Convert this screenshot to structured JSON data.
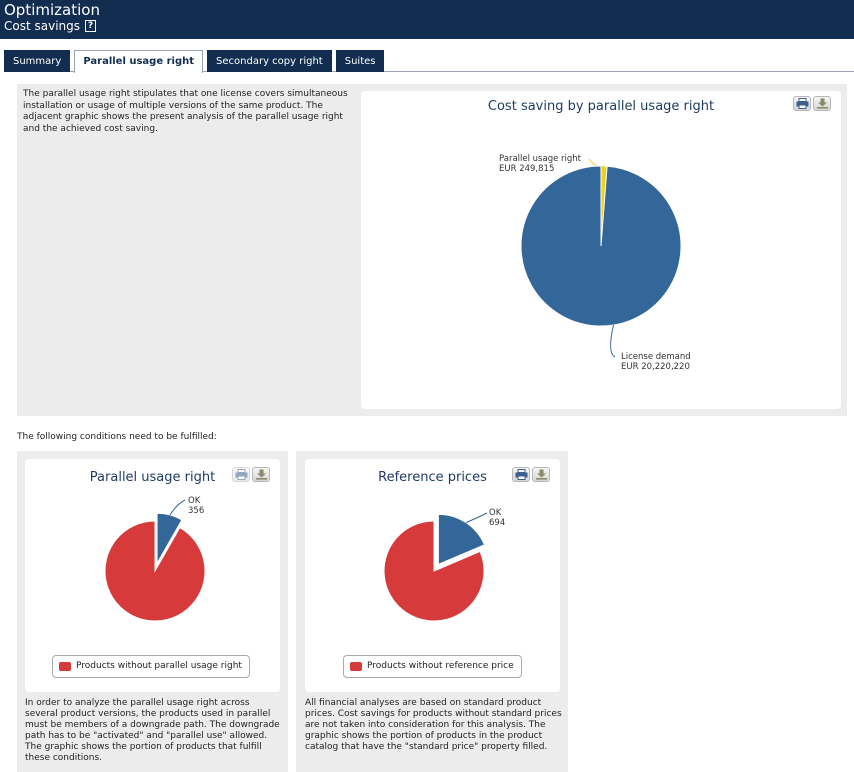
{
  "header": {
    "title": "Optimization",
    "subtitle": "Cost savings",
    "help_glyph": "?"
  },
  "tabs": [
    {
      "label": "Summary",
      "active": false
    },
    {
      "label": "Parallel usage right",
      "active": true
    },
    {
      "label": "Secondary copy right",
      "active": false
    },
    {
      "label": "Suites",
      "active": false
    }
  ],
  "intro": {
    "text": "The parallel usage right stipulates that one license covers simultaneous installation or usage of multiple versions of the same product. The adjacent graphic shows the present analysis of the parallel usage right and the achieved cost saving."
  },
  "conditions_label": "The following conditions need to be fulfilled:",
  "controls": {
    "print_icon": "print-icon",
    "download_icon": "download-icon"
  },
  "colors": {
    "header": "#132d50",
    "blue": "#336699",
    "red": "#d63a3a",
    "yellow": "#f0d018",
    "title": "#1e3a5f"
  },
  "chart_data": [
    {
      "type": "pie",
      "title": "Cost saving by parallel usage right",
      "slices": [
        {
          "label": "Parallel usage right",
          "value_label": "EUR 249,815",
          "value": 249815,
          "color": "#f0d018"
        },
        {
          "label": "License demand",
          "value_label": "EUR 20,220,220",
          "value": 20220220,
          "color": "#336699"
        }
      ]
    },
    {
      "type": "pie",
      "title": "Parallel usage right",
      "slices": [
        {
          "label": "OK",
          "value_label": "356",
          "value": 356,
          "color": "#336699",
          "exploded": true
        },
        {
          "label": "Products without parallel usage right",
          "value": 3944,
          "color": "#d63a3a"
        }
      ],
      "legend": "Products without parallel usage right"
    },
    {
      "type": "pie",
      "title": "Reference prices",
      "slices": [
        {
          "label": "OK",
          "value_label": "694",
          "value": 694,
          "color": "#336699",
          "exploded": true
        },
        {
          "label": "Products without reference price",
          "value": 3035,
          "color": "#d63a3a"
        }
      ],
      "legend": "Products without reference price"
    }
  ],
  "left_panel": {
    "description": "In order to analyze the parallel usage right across several product versions, the products used in parallel must be members of a downgrade path. The downgrade path has to be \"activated\" and \"parallel use\" allowed. The graphic shows the portion of products that fulfill these conditions."
  },
  "right_panel": {
    "description": "All financial analyses are based on standard product prices. Cost savings for products without standard prices are not taken into consideration for this analysis. The graphic shows the portion of products in the product catalog that have the \"standard price\" property filled."
  }
}
